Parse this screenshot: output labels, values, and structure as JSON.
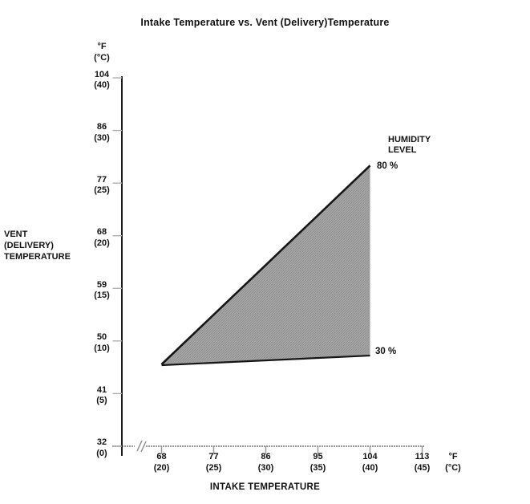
{
  "title": "Intake Temperature vs. Vent (Delivery)Temperature",
  "y_axis": {
    "label_lines": [
      "VENT",
      "(DELIVERY)",
      "TEMPERATURE"
    ],
    "unit_lines": [
      "°F",
      "(°C)"
    ],
    "ticks": [
      {
        "f": "104",
        "c": "(40)"
      },
      {
        "f": "86",
        "c": "(30)"
      },
      {
        "f": "77",
        "c": "(25)"
      },
      {
        "f": "68",
        "c": "(20)"
      },
      {
        "f": "59",
        "c": "(15)"
      },
      {
        "f": "50",
        "c": "(10)"
      },
      {
        "f": "41",
        "c": "(5)"
      },
      {
        "f": "32",
        "c": "(0)"
      }
    ]
  },
  "x_axis": {
    "label": "INTAKE TEMPERATURE",
    "unit_lines": [
      "°F",
      "(°C)"
    ],
    "ticks": [
      {
        "f": "68",
        "c": "(20)"
      },
      {
        "f": "77",
        "c": "(25)"
      },
      {
        "f": "86",
        "c": "(30)"
      },
      {
        "f": "95",
        "c": "(35)"
      },
      {
        "f": "104",
        "c": "(40)"
      },
      {
        "f": "113",
        "c": "(45)"
      }
    ],
    "has_break": true
  },
  "legend": {
    "title_lines": [
      "HUMIDITY",
      "LEVEL"
    ],
    "upper_label": "80 %",
    "lower_label": "30 %"
  },
  "chart_data": {
    "type": "area",
    "title": "Intake Temperature vs. Vent (Delivery)Temperature",
    "xlabel": "INTAKE TEMPERATURE",
    "ylabel": "VENT (DELIVERY) TEMPERATURE",
    "units": "°F (°C)",
    "x_tick_values_f": [
      68,
      77,
      86,
      95,
      104,
      113
    ],
    "y_tick_values_f": [
      104,
      86,
      77,
      68,
      59,
      50,
      41,
      32
    ],
    "x_range_f": [
      68,
      113
    ],
    "y_range_f": [
      32,
      104
    ],
    "x_axis_break": true,
    "grid": false,
    "legend_title": "HUMIDITY LEVEL",
    "series": [
      {
        "name": "80 % humidity",
        "points": [
          {
            "intake_f": 68,
            "vent_f": 46
          },
          {
            "intake_f": 104,
            "vent_f": 80
          }
        ]
      },
      {
        "name": "30 % humidity",
        "points": [
          {
            "intake_f": 68,
            "vent_f": 46
          },
          {
            "intake_f": 104,
            "vent_f": 47.5
          }
        ]
      }
    ],
    "shaded_region": "area between 30 % and 80 % humidity lines, intake 68-104 °F",
    "colors": {
      "region_fill": "#9d9d9d",
      "boundary_line": "#161616",
      "y_axis": "#1c1c1c",
      "x_axis": "#9a9a9a",
      "tick": "#b0b0b0",
      "text": "#121212"
    }
  }
}
